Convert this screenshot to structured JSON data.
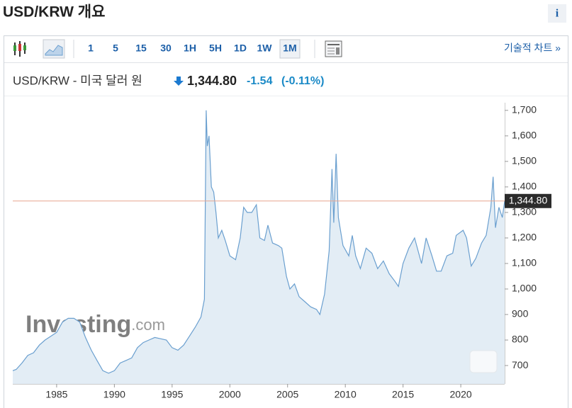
{
  "header": {
    "title": "USD/KRW 개요",
    "info": "i"
  },
  "toolbar": {
    "intervals": [
      "1",
      "5",
      "15",
      "30",
      "1H",
      "5H",
      "1D",
      "1W",
      "1M"
    ],
    "selected": "1M",
    "link": "기술적 차트 »"
  },
  "quote": {
    "name": "USD/KRW - 미국 달러 원",
    "price": "1,344.80",
    "change": "-1.54",
    "change_pct": "(-0.11%)"
  },
  "chart_data": {
    "type": "area",
    "color": "#6a9fcf",
    "fill": "#e3edf5",
    "watermark": [
      "Investing",
      ".com"
    ],
    "x": [
      1981.2,
      1981.5,
      1982,
      1982.5,
      1983,
      1983.5,
      1984,
      1984.5,
      1985,
      1985.5,
      1986,
      1986.5,
      1987,
      1987.5,
      1988,
      1988.5,
      1989,
      1989.5,
      1990,
      1990.5,
      1991,
      1991.5,
      1992,
      1992.5,
      1993,
      1993.5,
      1994,
      1994.5,
      1995,
      1995.5,
      1996,
      1996.5,
      1997,
      1997.5,
      1997.8,
      1997.95,
      1998.05,
      1998.2,
      1998.4,
      1998.6,
      1998.8,
      1999,
      1999.3,
      1999.6,
      2000,
      2000.5,
      2000.9,
      2001.2,
      2001.5,
      2001.9,
      2002.3,
      2002.6,
      2003,
      2003.3,
      2003.7,
      2004.2,
      2004.5,
      2004.9,
      2005.2,
      2005.6,
      2006,
      2006.5,
      2007,
      2007.5,
      2007.8,
      2008.2,
      2008.6,
      2008.85,
      2009,
      2009.2,
      2009.4,
      2009.8,
      2010.3,
      2010.6,
      2010.9,
      2011.3,
      2011.8,
      2012.3,
      2012.8,
      2013.3,
      2013.8,
      2014.3,
      2014.6,
      2015,
      2015.5,
      2016,
      2016.6,
      2017,
      2017.5,
      2017.9,
      2018.3,
      2018.8,
      2019.3,
      2019.6,
      2020.2,
      2020.5,
      2020.9,
      2021.3,
      2021.8,
      2022.2,
      2022.6,
      2022.8,
      2023,
      2023.3,
      2023.6,
      2023.8
    ],
    "values": [
      680,
      685,
      710,
      740,
      750,
      780,
      800,
      815,
      830,
      870,
      885,
      885,
      870,
      810,
      760,
      720,
      680,
      670,
      680,
      710,
      720,
      730,
      770,
      790,
      800,
      810,
      805,
      800,
      770,
      760,
      780,
      815,
      850,
      890,
      960,
      1700,
      1560,
      1600,
      1400,
      1380,
      1300,
      1200,
      1230,
      1190,
      1130,
      1115,
      1200,
      1320,
      1300,
      1300,
      1330,
      1200,
      1190,
      1250,
      1180,
      1170,
      1160,
      1050,
      1000,
      1020,
      970,
      950,
      930,
      920,
      900,
      980,
      1150,
      1470,
      1260,
      1530,
      1280,
      1170,
      1130,
      1210,
      1130,
      1080,
      1160,
      1140,
      1080,
      1110,
      1060,
      1030,
      1010,
      1100,
      1160,
      1200,
      1100,
      1200,
      1130,
      1070,
      1070,
      1130,
      1140,
      1210,
      1230,
      1200,
      1090,
      1120,
      1180,
      1210,
      1320,
      1440,
      1240,
      1320,
      1280,
      1344.8
    ],
    "xlim": [
      1981.2,
      2023.8
    ],
    "xticks": [
      1985,
      1990,
      1995,
      2000,
      2005,
      2010,
      2015,
      2020
    ],
    "ylim": [
      628,
      1730
    ],
    "yticks": [
      700,
      800,
      900,
      {
        "value": 1000,
        "label": "1,000"
      },
      {
        "value": 1100,
        "label": "1,100"
      },
      {
        "value": 1200,
        "label": "1,200"
      },
      {
        "value": 1300,
        "label": "1,300"
      },
      {
        "value": 1400,
        "label": "1,400"
      },
      {
        "value": 1500,
        "label": "1,500"
      },
      {
        "value": 1600,
        "label": "1,600"
      },
      {
        "value": 1700,
        "label": "1,700"
      }
    ],
    "reference_line": {
      "value": 1344.8,
      "label": "1,344.80",
      "color": "#e8a58f"
    }
  }
}
